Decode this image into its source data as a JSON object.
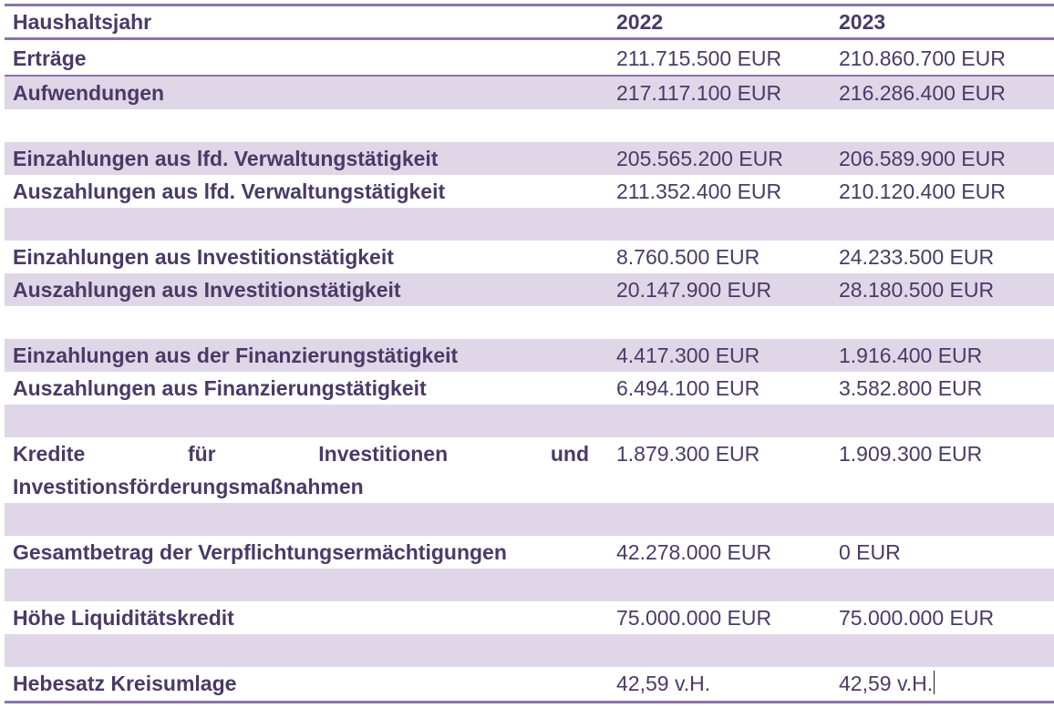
{
  "header": {
    "label": "Haushaltsjahr",
    "year1": "2022",
    "year2": "2023"
  },
  "rows": [
    {
      "label": "Erträge",
      "v1": "211.715.500 EUR",
      "v2": "210.860.700 EUR"
    },
    {
      "label": "Aufwendungen",
      "v1": "217.117.100 EUR",
      "v2": "216.286.400 EUR"
    },
    {
      "label": "",
      "v1": "",
      "v2": ""
    },
    {
      "label": "Einzahlungen aus lfd. Verwaltungstätigkeit",
      "v1": "205.565.200 EUR",
      "v2": "206.589.900 EUR"
    },
    {
      "label": "Auszahlungen aus lfd. Verwaltungstätigkeit",
      "v1": "211.352.400 EUR",
      "v2": "210.120.400 EUR"
    },
    {
      "label": "",
      "v1": "",
      "v2": ""
    },
    {
      "label": "Einzahlungen aus Investitionstätigkeit",
      "v1": "8.760.500 EUR",
      "v2": "24.233.500 EUR"
    },
    {
      "label": "Auszahlungen aus Investitionstätigkeit",
      "v1": "20.147.900 EUR",
      "v2": "28.180.500 EUR"
    },
    {
      "label": "",
      "v1": "",
      "v2": ""
    },
    {
      "label": "Einzahlungen aus der Finanzierungstätigkeit",
      "v1": "4.417.300 EUR",
      "v2": "1.916.400 EUR"
    },
    {
      "label": "Auszahlungen aus Finanzierungstätigkeit",
      "v1": "6.494.100 EUR",
      "v2": "3.582.800 EUR"
    },
    {
      "label": "",
      "v1": "",
      "v2": ""
    },
    {
      "label_line1": "Kredite für Investitionen und",
      "label_line2": "Investitionsförderungsmaßnahmen",
      "v1": "1.879.300 EUR",
      "v2": "1.909.300 EUR"
    },
    {
      "label": "",
      "v1": "",
      "v2": ""
    },
    {
      "label": "Gesamtbetrag der Verpflichtungsermächtigungen",
      "v1": "42.278.000 EUR",
      "v2": "0 EUR"
    },
    {
      "label": "",
      "v1": "",
      "v2": ""
    },
    {
      "label": "Höhe Liquiditätskredit",
      "v1": "75.000.000 EUR",
      "v2": "75.000.000 EUR"
    },
    {
      "label": "",
      "v1": "",
      "v2": ""
    },
    {
      "label": "Hebesatz Kreisumlage",
      "v1": "42,59 v.H.",
      "v2": "42,59 v.H."
    }
  ],
  "colors": {
    "text": "#4a3a66",
    "shade": "#dfd6e8",
    "rule": "#8a73a8"
  }
}
